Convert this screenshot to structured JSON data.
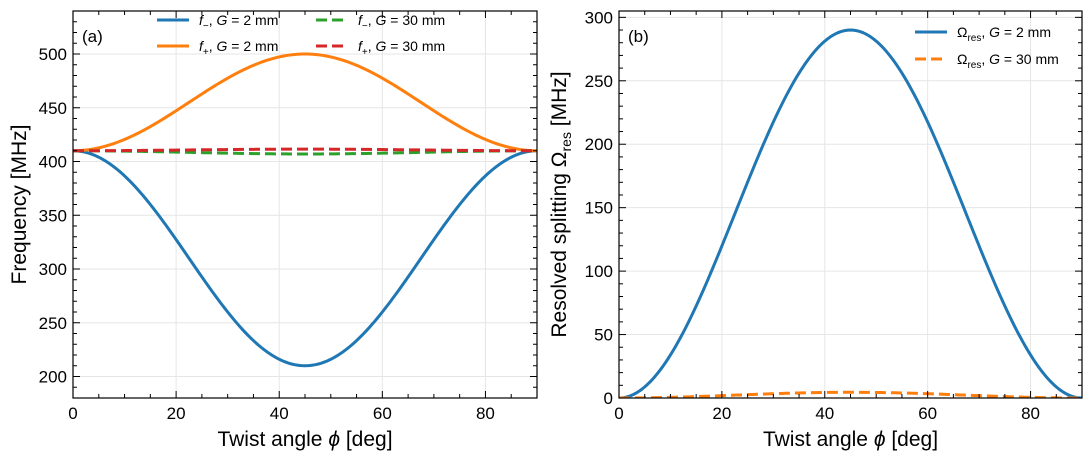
{
  "chart_data": [
    {
      "type": "line",
      "panel_label": "(a)",
      "xlabel": "Twist angle ϕ [deg]",
      "ylabel": "Frequency [MHz]",
      "xlim": [
        0,
        90
      ],
      "ylim": [
        180,
        540
      ],
      "xticks": [
        0,
        20,
        40,
        60,
        80
      ],
      "yticks": [
        200,
        250,
        300,
        350,
        400,
        450,
        500
      ],
      "grid": true,
      "legend_position": "top-center",
      "legend_columns": 2,
      "series": [
        {
          "name": "f−, G = 2 mm",
          "legend": {
            "var": "f",
            "sub": "−",
            "rest": ", G = 2 mm"
          },
          "color": "#1f77b4",
          "style": "solid",
          "shape": "sin2",
          "base": 410,
          "amplitude": -200
        },
        {
          "name": "f+, G = 2 mm",
          "legend": {
            "var": "f",
            "sub": "+",
            "rest": ", G = 2 mm"
          },
          "color": "#ff7f0e",
          "style": "solid",
          "shape": "sin2",
          "base": 410,
          "amplitude": 90
        },
        {
          "name": "f−, G = 30 mm",
          "legend": {
            "var": "f",
            "sub": "−",
            "rest": ", G = 30 mm"
          },
          "color": "#2ca02c",
          "style": "dashed",
          "shape": "sin2",
          "base": 410,
          "amplitude": -3
        },
        {
          "name": "f+, G = 30 mm",
          "legend": {
            "var": "f",
            "sub": "+",
            "rest": ", G = 30 mm"
          },
          "color": "#d62728",
          "style": "dashed",
          "shape": "sin2",
          "base": 410,
          "amplitude": 1.5
        }
      ]
    },
    {
      "type": "line",
      "panel_label": "(b)",
      "xlabel": "Twist angle ϕ [deg]",
      "ylabel": "Resolved splitting Ωres [MHz]",
      "ylabel_parts": {
        "prefix": "Resolved splitting Ω",
        "sub": "res",
        "suffix": " [MHz]"
      },
      "xlim": [
        0,
        90
      ],
      "ylim": [
        0,
        305
      ],
      "xticks": [
        0,
        20,
        40,
        60,
        80
      ],
      "yticks": [
        0,
        50,
        100,
        150,
        200,
        250,
        300
      ],
      "grid": true,
      "legend_position": "top-right",
      "legend_columns": 1,
      "series": [
        {
          "name": "Ωres, G = 2 mm",
          "legend": {
            "var": "Ω",
            "sub": "res",
            "rest": ", G = 2 mm"
          },
          "color": "#1f77b4",
          "style": "solid",
          "shape": "sin2",
          "base": 0,
          "amplitude": 290
        },
        {
          "name": "Ωres, G = 30 mm",
          "legend": {
            "var": "Ω",
            "sub": "res",
            "rest": ", G = 30 mm"
          },
          "color": "#ff7f0e",
          "style": "dashed",
          "shape": "sin2",
          "base": 0,
          "amplitude": 4.5
        }
      ]
    }
  ]
}
